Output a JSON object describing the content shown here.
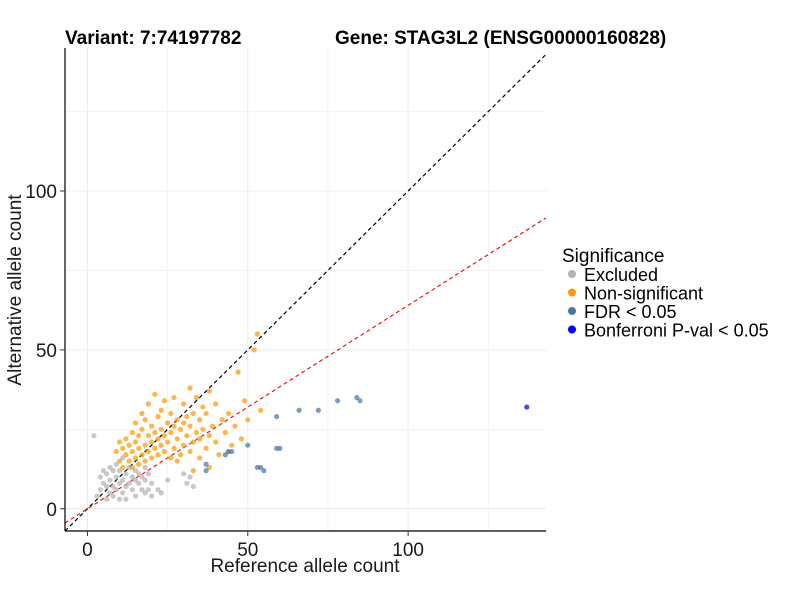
{
  "chart_data": {
    "type": "scatter",
    "title_left": "Variant: 7:74197782",
    "title_right": "Gene: STAG3L2 (ENSG00000160828)",
    "xlabel": "Reference allele count",
    "ylabel": "Alternative allele count",
    "xlim": [
      -7,
      143
    ],
    "ylim": [
      -7,
      145
    ],
    "xticks": [
      0,
      50,
      100
    ],
    "yticks": [
      0,
      50,
      100
    ],
    "grid": true,
    "reference_lines": [
      {
        "name": "identity",
        "slope": 1,
        "intercept": 0,
        "color": "#000000",
        "style": "dashed"
      },
      {
        "name": "fit",
        "slope": 0.64,
        "intercept": 0,
        "color": "#e41a1c",
        "style": "dashed"
      }
    ],
    "legend": {
      "title": "Significance",
      "position": "right",
      "items": [
        {
          "label": "Excluded",
          "color": "#b3b3b3"
        },
        {
          "label": "Non-significant",
          "color": "#ff9900"
        },
        {
          "label": "FDR < 0.05",
          "color": "#4a77aa"
        },
        {
          "label": "Bonferroni P-val < 0.05",
          "color": "#0000ff"
        }
      ]
    },
    "series": [
      {
        "name": "Excluded",
        "color": "#b3b3b3",
        "points": [
          [
            2,
            23
          ],
          [
            3,
            4
          ],
          [
            4,
            6
          ],
          [
            4,
            10
          ],
          [
            5,
            8
          ],
          [
            6,
            3
          ],
          [
            6,
            11
          ],
          [
            7,
            5
          ],
          [
            7,
            9
          ],
          [
            7,
            13
          ],
          [
            8,
            7
          ],
          [
            8,
            4
          ],
          [
            9,
            10
          ],
          [
            9,
            6
          ],
          [
            9,
            14
          ],
          [
            10,
            8
          ],
          [
            10,
            12
          ],
          [
            11,
            5
          ],
          [
            11,
            9
          ],
          [
            11,
            16
          ],
          [
            12,
            7
          ],
          [
            12,
            11
          ],
          [
            13,
            8
          ],
          [
            13,
            13
          ],
          [
            14,
            10
          ],
          [
            14,
            6
          ],
          [
            15,
            9
          ],
          [
            15,
            12
          ],
          [
            16,
            11
          ],
          [
            16,
            8
          ],
          [
            17,
            10
          ],
          [
            18,
            9
          ],
          [
            18,
            13
          ],
          [
            19,
            11
          ],
          [
            20,
            8
          ],
          [
            12,
            3
          ],
          [
            10,
            3
          ],
          [
            18,
            5
          ],
          [
            19,
            6
          ],
          [
            20,
            4
          ],
          [
            22,
            6
          ],
          [
            23,
            5
          ],
          [
            15,
            4
          ],
          [
            25,
            9
          ],
          [
            30,
            11
          ],
          [
            31,
            8
          ],
          [
            32,
            10
          ],
          [
            33,
            7
          ],
          [
            5,
            12
          ],
          [
            6,
            7
          ],
          [
            8,
            12
          ],
          [
            17,
            6
          ]
        ]
      },
      {
        "name": "Non-significant",
        "color": "#ff9900",
        "points": [
          [
            9,
            18
          ],
          [
            10,
            15
          ],
          [
            10,
            21
          ],
          [
            11,
            13
          ],
          [
            11,
            19
          ],
          [
            12,
            17
          ],
          [
            12,
            22
          ],
          [
            13,
            15
          ],
          [
            13,
            20
          ],
          [
            14,
            13
          ],
          [
            14,
            18
          ],
          [
            14,
            24
          ],
          [
            15,
            16
          ],
          [
            15,
            21
          ],
          [
            15,
            27
          ],
          [
            16,
            14
          ],
          [
            16,
            19
          ],
          [
            16,
            23
          ],
          [
            17,
            17
          ],
          [
            17,
            25
          ],
          [
            17,
            30
          ],
          [
            18,
            15
          ],
          [
            18,
            20
          ],
          [
            18,
            28
          ],
          [
            19,
            18
          ],
          [
            19,
            23
          ],
          [
            19,
            33
          ],
          [
            20,
            16
          ],
          [
            20,
            21
          ],
          [
            20,
            26
          ],
          [
            21,
            19
          ],
          [
            21,
            24
          ],
          [
            21,
            36
          ],
          [
            22,
            17
          ],
          [
            22,
            22
          ],
          [
            22,
            29
          ],
          [
            23,
            20
          ],
          [
            23,
            25
          ],
          [
            23,
            31
          ],
          [
            24,
            18
          ],
          [
            24,
            23
          ],
          [
            24,
            34
          ],
          [
            25,
            21
          ],
          [
            25,
            27
          ],
          [
            26,
            16
          ],
          [
            26,
            24
          ],
          [
            26,
            30
          ],
          [
            27,
            19
          ],
          [
            27,
            26
          ],
          [
            27,
            35
          ],
          [
            28,
            22
          ],
          [
            28,
            28
          ],
          [
            29,
            17
          ],
          [
            29,
            25
          ],
          [
            30,
            20
          ],
          [
            30,
            27
          ],
          [
            30,
            33
          ],
          [
            31,
            23
          ],
          [
            31,
            29
          ],
          [
            32,
            18
          ],
          [
            32,
            26
          ],
          [
            32,
            38
          ],
          [
            33,
            21
          ],
          [
            33,
            30
          ],
          [
            34,
            24
          ],
          [
            34,
            35
          ],
          [
            35,
            16
          ],
          [
            35,
            22
          ],
          [
            35,
            28
          ],
          [
            36,
            25
          ],
          [
            36,
            32
          ],
          [
            37,
            19
          ],
          [
            37,
            30
          ],
          [
            38,
            23
          ],
          [
            38,
            37
          ],
          [
            39,
            26
          ],
          [
            40,
            21
          ],
          [
            40,
            33
          ],
          [
            41,
            17
          ],
          [
            42,
            28
          ],
          [
            43,
            24
          ],
          [
            44,
            30
          ],
          [
            45,
            20
          ],
          [
            46,
            26
          ],
          [
            47,
            43
          ],
          [
            48,
            22
          ],
          [
            49,
            34
          ],
          [
            50,
            28
          ],
          [
            52,
            50
          ],
          [
            53,
            55
          ],
          [
            54,
            31
          ],
          [
            38,
            13
          ],
          [
            28,
            15
          ],
          [
            33,
            12
          ],
          [
            44,
            18
          ]
        ]
      },
      {
        "name": "FDR < 0.05",
        "color": "#4a77aa",
        "points": [
          [
            37,
            12
          ],
          [
            37,
            14
          ],
          [
            43,
            17
          ],
          [
            44,
            18
          ],
          [
            45,
            18
          ],
          [
            50,
            20
          ],
          [
            53,
            13
          ],
          [
            54,
            13
          ],
          [
            55,
            12
          ],
          [
            59,
            19
          ],
          [
            60,
            19
          ],
          [
            59,
            29
          ],
          [
            66,
            31
          ],
          [
            72,
            31
          ],
          [
            78,
            34
          ],
          [
            84,
            35
          ],
          [
            85,
            34
          ]
        ]
      },
      {
        "name": "Bonferroni P-val < 0.05",
        "color": "#0000ff",
        "points": [
          [
            137,
            32
          ]
        ]
      }
    ]
  }
}
